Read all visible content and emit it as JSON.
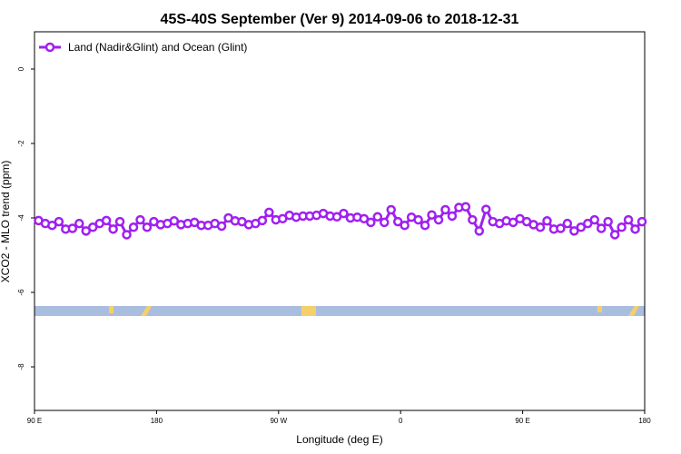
{
  "chart_data": {
    "type": "line",
    "title": "45S-40S September (Ver 9)   2014-09-06 to 2018-12-31",
    "x_label": "Longitude (deg E)",
    "y_label": "XCO2 - MLO trend (ppm)",
    "legend_position": "top-left",
    "xlim": [
      90,
      540
    ],
    "xticks": [
      {
        "value": 90,
        "label": "90 E"
      },
      180,
      {
        "value": 270,
        "label": "90 W"
      },
      {
        "value": 360,
        "label": "0"
      },
      {
        "value": 450,
        "label": "90 E"
      },
      {
        "value": 540,
        "label": "180"
      }
    ],
    "ylim": [
      -9.17,
      1.0
    ],
    "yticks": [
      0,
      -2,
      -4,
      -6,
      -8
    ],
    "x": [
      93,
      98,
      103,
      108,
      113,
      118,
      123,
      128,
      133,
      138,
      143,
      148,
      153,
      158,
      163,
      168,
      173,
      178,
      183,
      188,
      193,
      198,
      203,
      208,
      213,
      218,
      223,
      228,
      233,
      238,
      243,
      248,
      253,
      258,
      263,
      268,
      273,
      278,
      283,
      288,
      293,
      298,
      303,
      308,
      313,
      318,
      323,
      328,
      333,
      338,
      343,
      348,
      353,
      358,
      363,
      368,
      373,
      378,
      383,
      388,
      393,
      398,
      403,
      408,
      413,
      418,
      423,
      428,
      433,
      438,
      443,
      448,
      453,
      458,
      463,
      468,
      473,
      478,
      483,
      488,
      493,
      498,
      503,
      508,
      513,
      518,
      523,
      528,
      533,
      538
    ],
    "series": [
      {
        "name": "Land (Nadir&Glint) and Ocean (Glint)",
        "color": "#a020f0",
        "values": [
          -4.07,
          -4.15,
          -4.2,
          -4.1,
          -4.3,
          -4.28,
          -4.15,
          -4.35,
          -4.25,
          -4.15,
          -4.07,
          -4.3,
          -4.1,
          -4.45,
          -4.25,
          -4.05,
          -4.25,
          -4.1,
          -4.18,
          -4.15,
          -4.08,
          -4.18,
          -4.15,
          -4.12,
          -4.2,
          -4.2,
          -4.15,
          -4.22,
          -4.0,
          -4.08,
          -4.1,
          -4.18,
          -4.15,
          -4.07,
          -3.85,
          -4.05,
          -4.02,
          -3.93,
          -3.98,
          -3.95,
          -3.95,
          -3.93,
          -3.88,
          -3.95,
          -3.97,
          -3.88,
          -4.0,
          -3.98,
          -4.02,
          -4.12,
          -3.97,
          -4.12,
          -3.78,
          -4.1,
          -4.2,
          -3.98,
          -4.05,
          -4.2,
          -3.92,
          -4.05,
          -3.78,
          -3.95,
          -3.72,
          -3.7,
          -4.05,
          -4.35,
          -3.77,
          -4.1,
          -4.15,
          -4.08,
          -4.12,
          -4.02,
          -4.1,
          -4.18,
          -4.25,
          -4.08,
          -4.3,
          -4.28,
          -4.15,
          -4.35,
          -4.25,
          -4.15,
          -4.05,
          -4.28,
          -4.1,
          -4.45,
          -4.25,
          -4.05,
          -4.3,
          -4.1
        ]
      }
    ]
  }
}
